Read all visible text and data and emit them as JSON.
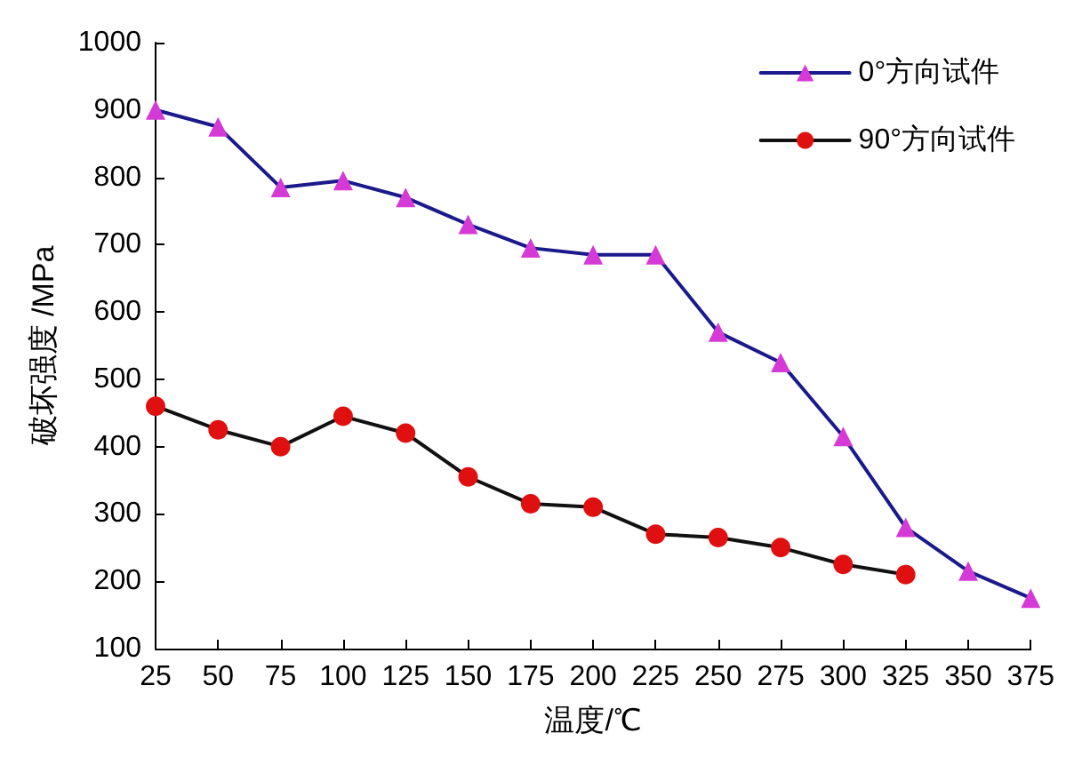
{
  "chart_data": {
    "type": "line",
    "xlabel": "温度/℃",
    "ylabel": "破坏强度 /MPa",
    "x": [
      25,
      50,
      75,
      100,
      125,
      150,
      175,
      200,
      225,
      250,
      275,
      300,
      325,
      350,
      375
    ],
    "series": [
      {
        "name": "0°方向试件",
        "color": "#d63ad6",
        "marker": "triangle",
        "values": [
          900,
          875,
          785,
          795,
          770,
          730,
          695,
          685,
          685,
          570,
          525,
          415,
          280,
          215,
          175
        ]
      },
      {
        "name": "90°方向试件",
        "color": "#e01010",
        "marker": "circle",
        "values": [
          460,
          425,
          400,
          445,
          420,
          355,
          315,
          310,
          270,
          265,
          250,
          225,
          210,
          null,
          null
        ]
      }
    ],
    "xlim": [
      25,
      375
    ],
    "xticks": [
      25,
      50,
      75,
      100,
      125,
      150,
      175,
      200,
      225,
      250,
      275,
      300,
      325,
      350,
      375
    ],
    "ylim": [
      100,
      1000
    ],
    "yticks": [
      100,
      200,
      300,
      400,
      500,
      600,
      700,
      800,
      900,
      1000
    ],
    "grid": false,
    "legend": "top right",
    "line_style": "solid"
  }
}
